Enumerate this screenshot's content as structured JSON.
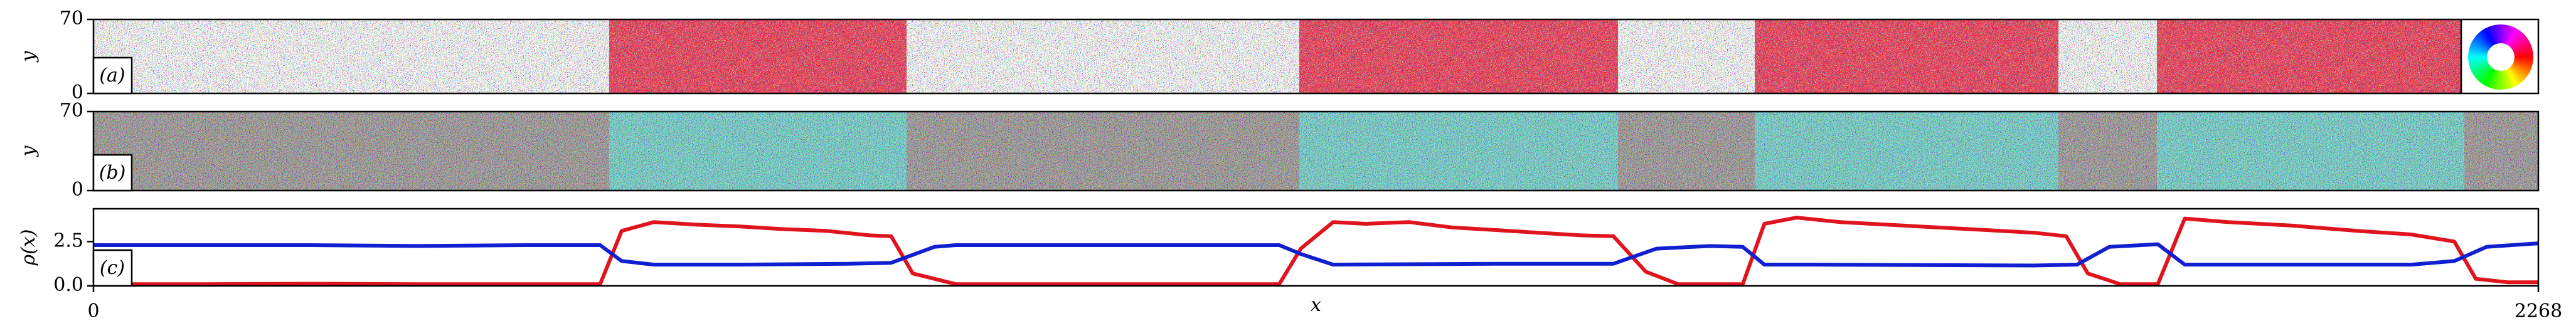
{
  "chart_data": [
    {
      "type": "image",
      "panel_label": "(a)",
      "ylabel": "y",
      "ylim": [
        0,
        70
      ],
      "yticks": [
        0,
        70
      ]
    },
    {
      "type": "image",
      "panel_label": "(b)",
      "ylabel": "y",
      "ylim": [
        0,
        70
      ],
      "yticks": [
        0,
        70
      ]
    },
    {
      "type": "line",
      "panel_label": "(c)",
      "ylabel": "ρ(x)",
      "xlabel": "x",
      "xlim": [
        0,
        2268
      ],
      "xticks": [
        0,
        2268
      ],
      "ylim": [
        0,
        4.35
      ],
      "yticks": [
        {
          "value": 0,
          "label": "0.0"
        },
        {
          "value": 2.5,
          "label": "2.5"
        }
      ],
      "series": [
        {
          "color": "#e0141e",
          "x": [
            0,
            100,
            200,
            300,
            400,
            470,
            490,
            520,
            560,
            600,
            640,
            680,
            720,
            740,
            760,
            800,
            900,
            1000,
            1100,
            1120,
            1150,
            1180,
            1220,
            1260,
            1300,
            1340,
            1380,
            1410,
            1440,
            1470,
            1530,
            1550,
            1580,
            1620,
            1680,
            1740,
            1800,
            1830,
            1850,
            1880,
            1915,
            1940,
            1980,
            2040,
            2100,
            2150,
            2190,
            2210,
            2240,
            2268
          ],
          "values": [
            0.1,
            0.1,
            0.12,
            0.1,
            0.1,
            0.1,
            3.1,
            3.6,
            3.45,
            3.35,
            3.2,
            3.1,
            2.85,
            2.8,
            0.7,
            0.1,
            0.1,
            0.1,
            0.1,
            2.1,
            3.6,
            3.5,
            3.6,
            3.3,
            3.15,
            3.0,
            2.85,
            2.8,
            0.8,
            0.1,
            0.1,
            3.5,
            3.85,
            3.6,
            3.4,
            3.2,
            3.0,
            2.8,
            0.7,
            0.1,
            0.1,
            3.8,
            3.6,
            3.4,
            3.1,
            2.9,
            2.5,
            0.4,
            0.2,
            0.2
          ]
        },
        {
          "color": "#1020d0",
          "x": [
            0,
            100,
            200,
            300,
            400,
            470,
            490,
            520,
            600,
            700,
            740,
            780,
            800,
            900,
            1000,
            1100,
            1120,
            1150,
            1300,
            1410,
            1450,
            1500,
            1530,
            1550,
            1600,
            1800,
            1840,
            1870,
            1915,
            1940,
            2000,
            2150,
            2190,
            2220,
            2268
          ],
          "values": [
            2.3,
            2.3,
            2.3,
            2.25,
            2.3,
            2.3,
            1.4,
            1.2,
            1.2,
            1.25,
            1.3,
            2.2,
            2.3,
            2.3,
            2.3,
            2.3,
            1.8,
            1.2,
            1.25,
            1.25,
            2.1,
            2.25,
            2.2,
            1.2,
            1.2,
            1.15,
            1.2,
            2.2,
            2.35,
            1.2,
            1.2,
            1.2,
            1.4,
            2.2,
            2.4
          ]
        }
      ]
    }
  ]
}
